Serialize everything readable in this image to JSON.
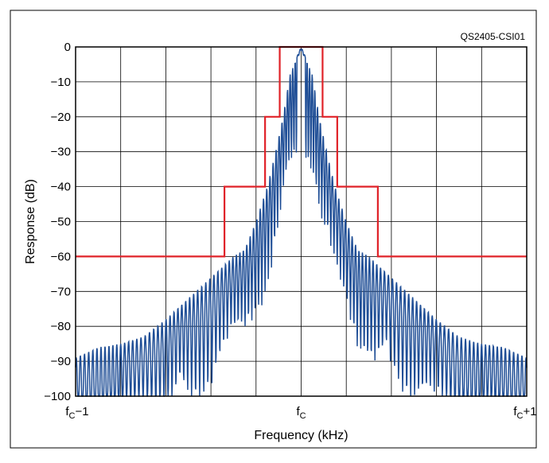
{
  "chart_data": {
    "type": "line",
    "title": "",
    "figure_code": "QS2405-CSI01",
    "xlabel": "Frequency (kHz)",
    "ylabel": "Response (dB)",
    "ylim": [
      -100,
      0
    ],
    "xlim": [
      -1,
      1
    ],
    "grid": true,
    "y_ticks": [
      {
        "value": 0,
        "label": "0"
      },
      {
        "value": -10,
        "label": "−10"
      },
      {
        "value": -20,
        "label": "−20"
      },
      {
        "value": -30,
        "label": "−30"
      },
      {
        "value": -40,
        "label": "−40"
      },
      {
        "value": -50,
        "label": "−50"
      },
      {
        "value": -60,
        "label": "−60"
      },
      {
        "value": -70,
        "label": "−70"
      },
      {
        "value": -80,
        "label": "−80"
      },
      {
        "value": -90,
        "label": "−90"
      },
      {
        "value": -100,
        "label": "−100"
      }
    ],
    "x_ticks": [
      {
        "value": -1,
        "main": "f",
        "sub": "C",
        "suffix": "−1"
      },
      {
        "value": 0,
        "main": "f",
        "sub": "C",
        "suffix": ""
      },
      {
        "value": 1,
        "main": "f",
        "sub": "C",
        "suffix": "+1"
      }
    ],
    "series": [
      {
        "color": "#e02228",
        "style": "step",
        "points": [
          [
            -1,
            -60
          ],
          [
            -0.34,
            -60
          ],
          [
            -0.34,
            -40
          ],
          [
            -0.16,
            -40
          ],
          [
            -0.16,
            -20
          ],
          [
            -0.095,
            -20
          ],
          [
            -0.095,
            0
          ],
          [
            0.095,
            0
          ],
          [
            0.095,
            -20
          ],
          [
            0.16,
            -20
          ],
          [
            0.16,
            -40
          ],
          [
            0.34,
            -40
          ],
          [
            0.34,
            -60
          ],
          [
            1,
            -60
          ]
        ]
      },
      {
        "color": "#1f4e96",
        "style": "oscillating-spectrum",
        "points": [
          [
            -1,
            -89
          ],
          [
            -0.9,
            -86
          ],
          [
            -0.8,
            -85
          ],
          [
            -0.7,
            -83
          ],
          [
            -0.6,
            -78
          ],
          [
            -0.5,
            -72
          ],
          [
            -0.4,
            -66
          ],
          [
            -0.3,
            -60
          ],
          [
            -0.25,
            -58
          ],
          [
            -0.2,
            -50
          ],
          [
            -0.15,
            -40
          ],
          [
            -0.12,
            -32
          ],
          [
            -0.08,
            -20
          ],
          [
            -0.05,
            -8
          ],
          [
            -0.02,
            -3
          ],
          [
            0,
            0
          ],
          [
            0.02,
            -3
          ],
          [
            0.05,
            -8
          ],
          [
            0.08,
            -20
          ],
          [
            0.12,
            -32
          ],
          [
            0.15,
            -40
          ],
          [
            0.2,
            -50
          ],
          [
            0.25,
            -58
          ],
          [
            0.3,
            -60
          ],
          [
            0.4,
            -66
          ],
          [
            0.5,
            -72
          ],
          [
            0.6,
            -78
          ],
          [
            0.7,
            -83
          ],
          [
            0.8,
            -85
          ],
          [
            0.9,
            -86
          ],
          [
            1,
            -89
          ]
        ]
      }
    ]
  }
}
